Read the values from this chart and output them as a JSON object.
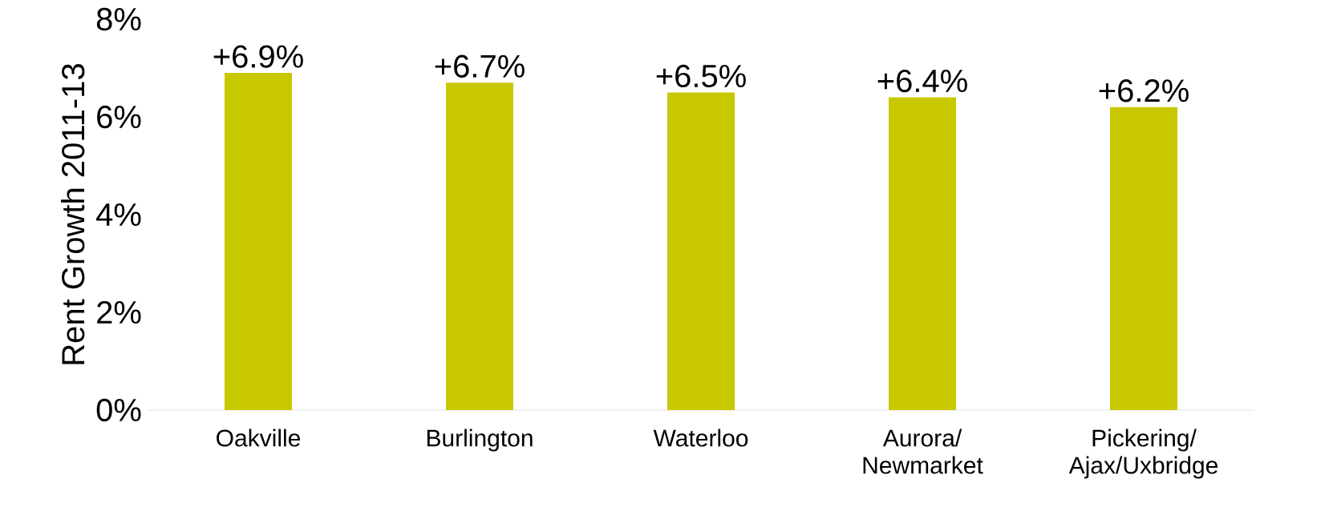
{
  "chart_data": {
    "type": "bar",
    "ylabel": "Rent Growth 2011-13",
    "categories": [
      "Oakville",
      "Burlington",
      "Waterloo",
      "Aurora/\nNewmarket",
      "Pickering/\nAjax/Uxbridge"
    ],
    "values": [
      6.9,
      6.7,
      6.5,
      6.4,
      6.2
    ],
    "value_labels": [
      "+6.9%",
      "+6.7%",
      "+6.5%",
      "+6.4%",
      "+6.2%"
    ],
    "color": "#c8c800",
    "ylim": [
      0,
      8
    ],
    "yticks": [
      {
        "value": 0,
        "label": "0%"
      },
      {
        "value": 2,
        "label": "2%"
      },
      {
        "value": 4,
        "label": "4%"
      },
      {
        "value": 6,
        "label": "6%"
      },
      {
        "value": 8,
        "label": "8%"
      }
    ],
    "grid": false
  }
}
